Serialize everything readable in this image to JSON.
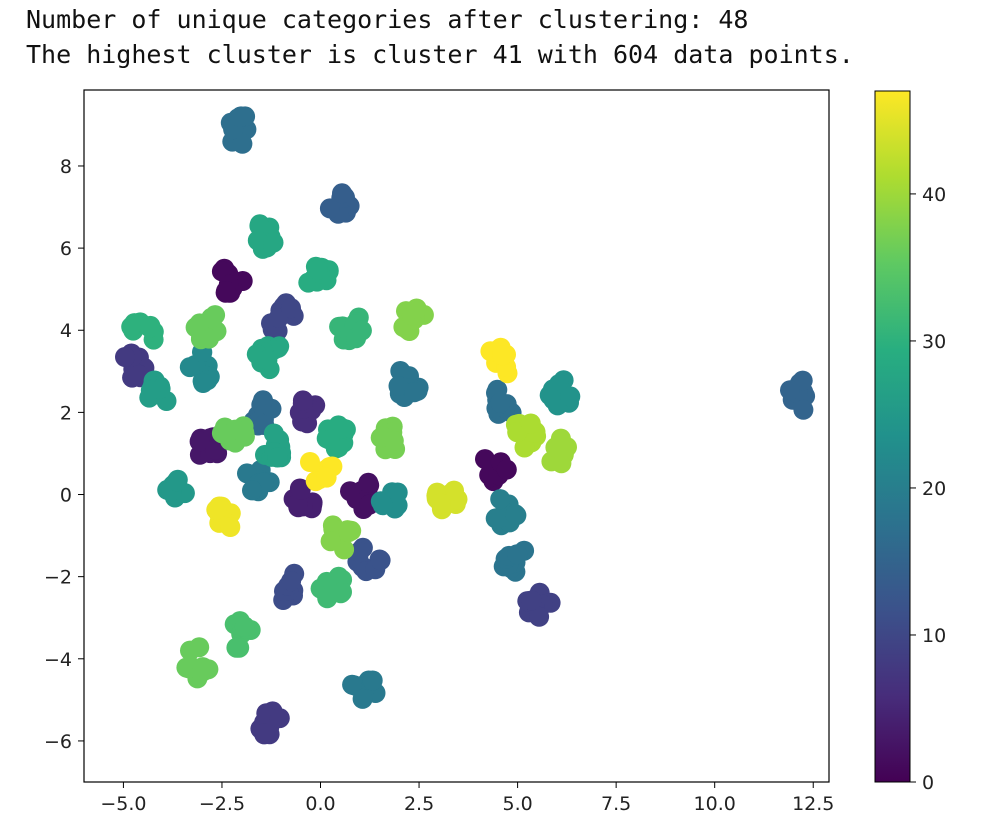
{
  "output": {
    "line1": "Number of unique categories after clustering: 48",
    "line2": "The highest cluster is cluster 41 with 604 data points."
  },
  "chart_data": {
    "type": "scatter",
    "title": "",
    "xlabel": "",
    "ylabel": "",
    "xlim": [
      -6.0,
      12.9
    ],
    "ylim": [
      -7.0,
      9.85
    ],
    "xticks": [
      "−5.0",
      "−2.5",
      "0.0",
      "2.5",
      "5.0",
      "7.5",
      "10.0",
      "12.5"
    ],
    "xtick_values": [
      -5.0,
      -2.5,
      0.0,
      2.5,
      5.0,
      7.5,
      10.0,
      12.5
    ],
    "yticks": [
      "8",
      "6",
      "4",
      "2",
      "0",
      "−2",
      "−4",
      "−6"
    ],
    "ytick_values": [
      8,
      6,
      4,
      2,
      0,
      -2,
      -4,
      -6
    ],
    "grid": false,
    "colormap": "viridis",
    "colorbar": {
      "range": [
        0,
        47
      ],
      "ticks": [
        "0",
        "10",
        "20",
        "30",
        "40"
      ],
      "tick_values": [
        0,
        10,
        20,
        30,
        40
      ]
    },
    "clusters": [
      {
        "x": -2.3,
        "y": 5.2,
        "value": 1
      },
      {
        "x": -2.9,
        "y": 1.2,
        "value": 3
      },
      {
        "x": -0.3,
        "y": 2.1,
        "value": 6
      },
      {
        "x": -0.4,
        "y": -0.1,
        "value": 4
      },
      {
        "x": 1.0,
        "y": 0.0,
        "value": 2
      },
      {
        "x": 4.4,
        "y": 0.6,
        "value": 1
      },
      {
        "x": -1.0,
        "y": 4.3,
        "value": 10
      },
      {
        "x": -4.8,
        "y": 3.1,
        "value": 8
      },
      {
        "x": 5.5,
        "y": -2.6,
        "value": 9
      },
      {
        "x": -1.3,
        "y": -5.6,
        "value": 8
      },
      {
        "x": 0.5,
        "y": 7.2,
        "value": 14
      },
      {
        "x": -2.1,
        "y": 8.9,
        "value": 17
      },
      {
        "x": 12.2,
        "y": 2.4,
        "value": 15
      },
      {
        "x": 1.2,
        "y": -1.5,
        "value": 12
      },
      {
        "x": 2.2,
        "y": 2.7,
        "value": 18
      },
      {
        "x": 4.6,
        "y": 2.2,
        "value": 17
      },
      {
        "x": 4.7,
        "y": -0.4,
        "value": 20
      },
      {
        "x": -1.5,
        "y": 2.0,
        "value": 16
      },
      {
        "x": -0.9,
        "y": -2.2,
        "value": 11
      },
      {
        "x": 1.1,
        "y": -4.7,
        "value": 19
      },
      {
        "x": 4.9,
        "y": -1.5,
        "value": 18
      },
      {
        "x": -1.6,
        "y": 0.3,
        "value": 19
      },
      {
        "x": -3.0,
        "y": 3.1,
        "value": 22
      },
      {
        "x": 1.8,
        "y": 0.0,
        "value": 23
      },
      {
        "x": 6.1,
        "y": 2.5,
        "value": 24
      },
      {
        "x": -4.1,
        "y": 2.5,
        "value": 26
      },
      {
        "x": -1.3,
        "y": 3.4,
        "value": 28
      },
      {
        "x": -1.2,
        "y": 1.2,
        "value": 27
      },
      {
        "x": -3.6,
        "y": 0.3,
        "value": 25
      },
      {
        "x": 0.4,
        "y": 1.5,
        "value": 29
      },
      {
        "x": -4.5,
        "y": 4.0,
        "value": 30
      },
      {
        "x": -0.1,
        "y": 5.4,
        "value": 29
      },
      {
        "x": -1.5,
        "y": 6.3,
        "value": 28
      },
      {
        "x": 0.8,
        "y": 4.0,
        "value": 31
      },
      {
        "x": 0.3,
        "y": -2.2,
        "value": 32
      },
      {
        "x": -2.0,
        "y": -3.4,
        "value": 33
      },
      {
        "x": -3.1,
        "y": -4.1,
        "value": 36
      },
      {
        "x": -2.2,
        "y": 1.6,
        "value": 36
      },
      {
        "x": 0.5,
        "y": -1.0,
        "value": 38
      },
      {
        "x": 1.7,
        "y": 1.3,
        "value": 37
      },
      {
        "x": 2.3,
        "y": 4.3,
        "value": 38
      },
      {
        "x": -2.9,
        "y": 4.1,
        "value": 36
      },
      {
        "x": 5.2,
        "y": 1.5,
        "value": 41
      },
      {
        "x": 6.0,
        "y": 1.1,
        "value": 40
      },
      {
        "x": 3.2,
        "y": 0.0,
        "value": 44
      },
      {
        "x": 0.0,
        "y": 0.6,
        "value": 47
      },
      {
        "x": -2.5,
        "y": -0.6,
        "value": 46
      },
      {
        "x": 4.6,
        "y": 3.3,
        "value": 47
      }
    ]
  }
}
